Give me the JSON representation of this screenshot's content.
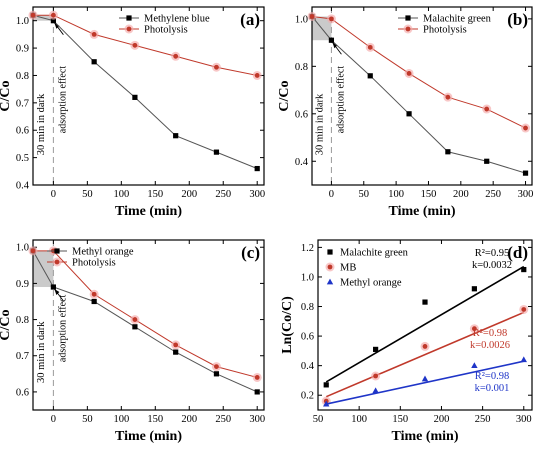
{
  "colors": {
    "black": "#000000",
    "red": "#c0392b",
    "blue": "#1f35c8",
    "shade": "#bdbdbd",
    "halo": "#f4a9a9",
    "dash": "#9a9a9a"
  },
  "chart_data": [
    {
      "id": "a",
      "panel_label": "(a)",
      "type": "line",
      "xlabel": "Time (min)",
      "ylabel": "C/Co",
      "xlim": [
        -30,
        310
      ],
      "ylim": [
        0.4,
        1.05
      ],
      "xticks": [
        0,
        50,
        100,
        150,
        200,
        250,
        300
      ],
      "yticks": [
        0.4,
        0.5,
        0.6,
        0.7,
        0.8,
        0.9,
        1.0
      ],
      "ytick_labels": [
        "0.4",
        "0.5",
        "0.6",
        "0.7",
        "0.8",
        "0.9",
        "1.0"
      ],
      "annotations": {
        "dark": "30 min in dark",
        "adsorption": "adsorption effect"
      },
      "dark_region": {
        "x": [
          -30,
          0
        ],
        "y": [
          1.0,
          1.02
        ]
      },
      "legend": "top-right",
      "series": [
        {
          "name": "Methylene blue",
          "color": "#000000",
          "marker": "square",
          "x": [
            -30,
            0,
            60,
            120,
            180,
            240,
            300
          ],
          "y": [
            1.02,
            1.0,
            0.85,
            0.72,
            0.58,
            0.52,
            0.46
          ]
        },
        {
          "name": "Photolysis",
          "color": "#c0392b",
          "marker": "circle",
          "x": [
            -30,
            0,
            60,
            120,
            180,
            240,
            300
          ],
          "y": [
            1.02,
            1.02,
            0.95,
            0.91,
            0.87,
            0.83,
            0.8
          ]
        }
      ]
    },
    {
      "id": "b",
      "panel_label": "(b)",
      "type": "line",
      "xlabel": "Time (min)",
      "ylabel": "C/Co",
      "xlim": [
        -30,
        310
      ],
      "ylim": [
        0.3,
        1.05
      ],
      "xticks": [
        0,
        50,
        100,
        150,
        200,
        250,
        300
      ],
      "yticks": [
        0.4,
        0.6,
        0.8,
        1.0
      ],
      "ytick_labels": [
        "0.4",
        "0.6",
        "0.8",
        "1.0"
      ],
      "annotations": {
        "dark": "30 min in dark",
        "adsorption": "adsorption effect"
      },
      "dark_region": {
        "x": [
          -30,
          0
        ],
        "y": [
          0.91,
          1.01
        ]
      },
      "legend": "top-right",
      "series": [
        {
          "name": "Malachite green",
          "color": "#000000",
          "marker": "square",
          "x": [
            -30,
            0,
            60,
            120,
            180,
            240,
            300
          ],
          "y": [
            1.01,
            0.91,
            0.76,
            0.6,
            0.44,
            0.4,
            0.35
          ]
        },
        {
          "name": "Photolysis",
          "color": "#c0392b",
          "marker": "circle",
          "x": [
            -30,
            0,
            60,
            120,
            180,
            240,
            300
          ],
          "y": [
            1.01,
            1.0,
            0.88,
            0.77,
            0.67,
            0.62,
            0.54
          ]
        }
      ]
    },
    {
      "id": "c",
      "panel_label": "(c)",
      "type": "line",
      "xlabel": "Time (min)",
      "ylabel": "C/Co",
      "xlim": [
        -30,
        310
      ],
      "ylim": [
        0.55,
        1.02
      ],
      "xticks": [
        0,
        50,
        100,
        150,
        200,
        250,
        300
      ],
      "yticks": [
        0.6,
        0.7,
        0.8,
        0.9,
        1.0
      ],
      "ytick_labels": [
        "0.6",
        "0.7",
        "0.8",
        "0.9",
        "1.0"
      ],
      "annotations": {
        "dark": "30 min in dark",
        "adsorption": "adsorption effect"
      },
      "dark_region": {
        "x": [
          -30,
          0
        ],
        "y": [
          0.89,
          0.99
        ]
      },
      "legend": "top-left",
      "series": [
        {
          "name": "Methyl orange",
          "color": "#000000",
          "marker": "square",
          "x": [
            -30,
            0,
            60,
            120,
            180,
            240,
            300
          ],
          "y": [
            0.99,
            0.89,
            0.85,
            0.78,
            0.71,
            0.65,
            0.6
          ]
        },
        {
          "name": "Photolysis",
          "color": "#c0392b",
          "marker": "circle",
          "x": [
            -30,
            0,
            60,
            120,
            180,
            240,
            300
          ],
          "y": [
            0.99,
            0.99,
            0.87,
            0.8,
            0.73,
            0.67,
            0.64
          ]
        }
      ]
    },
    {
      "id": "d",
      "panel_label": "(d)",
      "type": "scatter",
      "xlabel": "Time (min)",
      "ylabel": "Ln(Co/C)",
      "xlim": [
        50,
        310
      ],
      "ylim": [
        0.1,
        1.25
      ],
      "xticks": [
        50,
        100,
        150,
        200,
        250,
        300
      ],
      "yticks": [
        0.2,
        0.4,
        0.6,
        0.8,
        1.0,
        1.2
      ],
      "ytick_labels": [
        "0.2",
        "0.4",
        "0.6",
        "0.8",
        "1.0",
        "1.2"
      ],
      "legend": "top-left",
      "series": [
        {
          "name": "Malachite green",
          "color": "#000000",
          "marker": "square",
          "x": [
            60,
            120,
            180,
            240,
            300
          ],
          "y": [
            0.27,
            0.51,
            0.83,
            0.92,
            1.05
          ],
          "fit": {
            "x": [
              60,
              300
            ],
            "y": [
              0.29,
              1.07
            ]
          },
          "r2_label": "R²=0.95",
          "k_label": "k=0.0032"
        },
        {
          "name": "MB",
          "color": "#c0392b",
          "marker": "circle",
          "x": [
            60,
            120,
            180,
            240,
            300
          ],
          "y": [
            0.16,
            0.33,
            0.53,
            0.65,
            0.78
          ],
          "fit": {
            "x": [
              60,
              300
            ],
            "y": [
              0.19,
              0.76
            ]
          },
          "r2_label": "R²=0.98",
          "k_label": "k=0.0026"
        },
        {
          "name": "Methyl orange",
          "color": "#1f35c8",
          "marker": "triangle",
          "x": [
            60,
            120,
            180,
            240,
            300
          ],
          "y": [
            0.14,
            0.23,
            0.31,
            0.4,
            0.44
          ],
          "fit": {
            "x": [
              60,
              300
            ],
            "y": [
              0.14,
              0.43
            ]
          },
          "r2_label": "R²=0.98",
          "k_label": "k=0.001"
        }
      ]
    }
  ]
}
